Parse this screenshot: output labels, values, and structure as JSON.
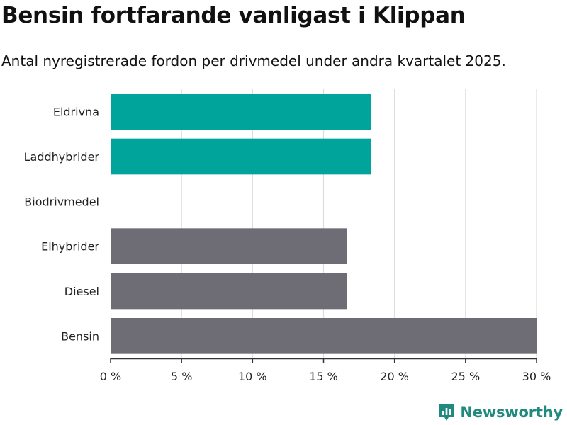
{
  "title": "Bensin fortfarande vanligast i Klippan",
  "subtitle": "Antal nyregistrerade fordon per drivmedel under andra kvartalet 2025.",
  "brand": "Newsworthy",
  "chart_data": {
    "type": "bar",
    "orientation": "horizontal",
    "categories": [
      "Eldrivna",
      "Laddhybrider",
      "Biodrivmedel",
      "Elhybrider",
      "Diesel",
      "Bensin"
    ],
    "values": [
      18.33,
      18.33,
      0,
      16.67,
      16.67,
      30.0
    ],
    "highlighted": [
      true,
      true,
      false,
      false,
      false,
      false
    ],
    "colors": {
      "highlight": "#00a49a",
      "default": "#6e6d75",
      "grid": "#dcdcdc",
      "axis": "#333333"
    },
    "xlim": [
      0,
      30
    ],
    "ticks": [
      0,
      5,
      10,
      15,
      20,
      25,
      30
    ],
    "tick_labels": [
      "0 %",
      "5 %",
      "10 %",
      "15 %",
      "20 %",
      "25 %",
      "30 %"
    ],
    "grid": true,
    "xlabel": "",
    "ylabel": ""
  }
}
